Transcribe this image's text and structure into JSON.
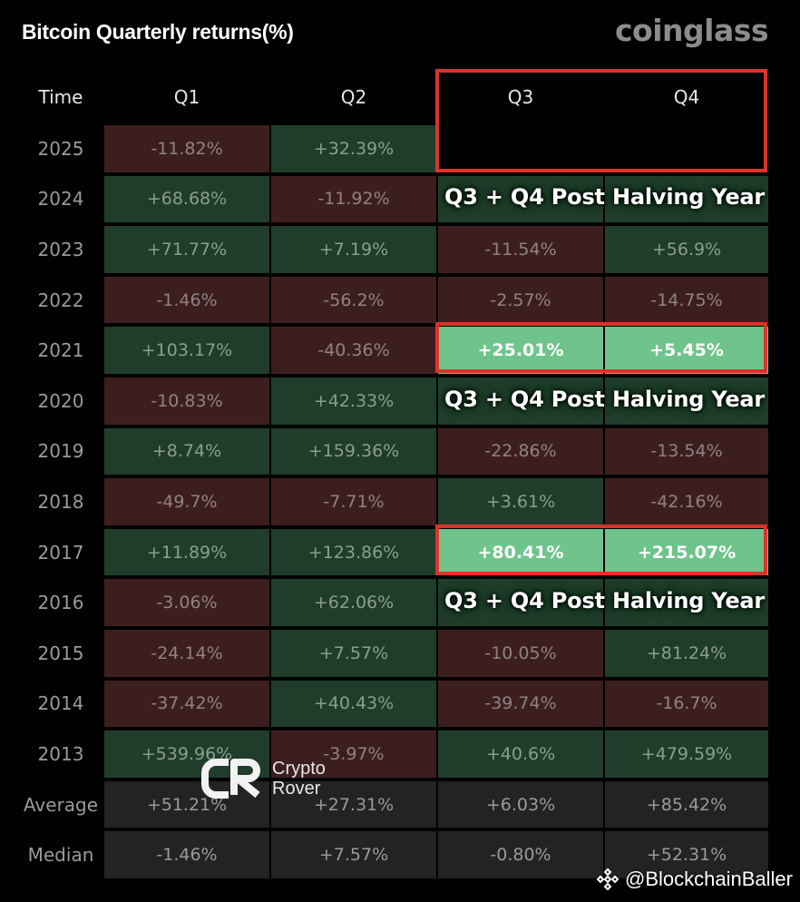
{
  "header": {
    "title": "Bitcoin Quarterly returns(%)",
    "brand": "coinglass"
  },
  "columns": [
    "Time",
    "Q1",
    "Q2",
    "Q3",
    "Q4"
  ],
  "rows": [
    {
      "label": "2025",
      "cells": [
        "-11.82%",
        "+32.39%",
        "",
        ""
      ]
    },
    {
      "label": "2024",
      "cells": [
        "+68.68%",
        "-11.92%",
        "",
        ""
      ]
    },
    {
      "label": "2023",
      "cells": [
        "+71.77%",
        "+7.19%",
        "-11.54%",
        "+56.9%"
      ]
    },
    {
      "label": "2022",
      "cells": [
        "-1.46%",
        "-56.2%",
        "-2.57%",
        "-14.75%"
      ]
    },
    {
      "label": "2021",
      "cells": [
        "+103.17%",
        "-40.36%",
        "+25.01%",
        "+5.45%"
      ]
    },
    {
      "label": "2020",
      "cells": [
        "-10.83%",
        "+42.33%",
        "",
        ""
      ]
    },
    {
      "label": "2019",
      "cells": [
        "+8.74%",
        "+159.36%",
        "-22.86%",
        "-13.54%"
      ]
    },
    {
      "label": "2018",
      "cells": [
        "-49.7%",
        "-7.71%",
        "+3.61%",
        "-42.16%"
      ]
    },
    {
      "label": "2017",
      "cells": [
        "+11.89%",
        "+123.86%",
        "+80.41%",
        "+215.07%"
      ]
    },
    {
      "label": "2016",
      "cells": [
        "-3.06%",
        "+62.06%",
        "",
        ""
      ]
    },
    {
      "label": "2015",
      "cells": [
        "-24.14%",
        "+7.57%",
        "-10.05%",
        "+81.24%"
      ]
    },
    {
      "label": "2014",
      "cells": [
        "-37.42%",
        "+40.43%",
        "-39.74%",
        "-16.7%"
      ]
    },
    {
      "label": "2013",
      "cells": [
        "+539.96%",
        "-3.97%",
        "+40.6%",
        "+479.59%"
      ]
    },
    {
      "label": "Average",
      "cells": [
        "+51.21%",
        "+27.31%",
        "+6.03%",
        "+85.42%"
      ]
    },
    {
      "label": "Median",
      "cells": [
        "-1.46%",
        "+7.57%",
        "-0.80%",
        "+52.31%"
      ]
    }
  ],
  "annotations": {
    "halving_label": "Q3 + Q4 Post Halving Year"
  },
  "watermark": {
    "logo": "CR",
    "line1": "Crypto",
    "line2": "Rover"
  },
  "credit": "@BlockchainBaller",
  "colors": {
    "negative": "#3d1e1e",
    "positive": "#1f3d2a",
    "highlight": "#6fc48b",
    "box": "#d9342b"
  },
  "chart_data": {
    "type": "table",
    "title": "Bitcoin Quarterly returns(%)",
    "columns": [
      "Time",
      "Q1",
      "Q2",
      "Q3",
      "Q4"
    ],
    "rows": [
      [
        "2025",
        -11.82,
        32.39,
        null,
        null
      ],
      [
        "2024",
        68.68,
        -11.92,
        null,
        null
      ],
      [
        "2023",
        71.77,
        7.19,
        -11.54,
        56.9
      ],
      [
        "2022",
        -1.46,
        -56.2,
        -2.57,
        -14.75
      ],
      [
        "2021",
        103.17,
        -40.36,
        25.01,
        5.45
      ],
      [
        "2020",
        -10.83,
        42.33,
        null,
        null
      ],
      [
        "2019",
        8.74,
        159.36,
        -22.86,
        -13.54
      ],
      [
        "2018",
        -49.7,
        -7.71,
        3.61,
        -42.16
      ],
      [
        "2017",
        11.89,
        123.86,
        80.41,
        215.07
      ],
      [
        "2016",
        -3.06,
        62.06,
        null,
        null
      ],
      [
        "2015",
        -24.14,
        7.57,
        -10.05,
        81.24
      ],
      [
        "2014",
        -37.42,
        40.43,
        -39.74,
        -16.7
      ],
      [
        "2013",
        539.96,
        -3.97,
        40.6,
        479.59
      ],
      [
        "Average",
        51.21,
        27.31,
        6.03,
        85.42
      ],
      [
        "Median",
        -1.46,
        7.57,
        -0.8,
        52.31
      ]
    ]
  }
}
